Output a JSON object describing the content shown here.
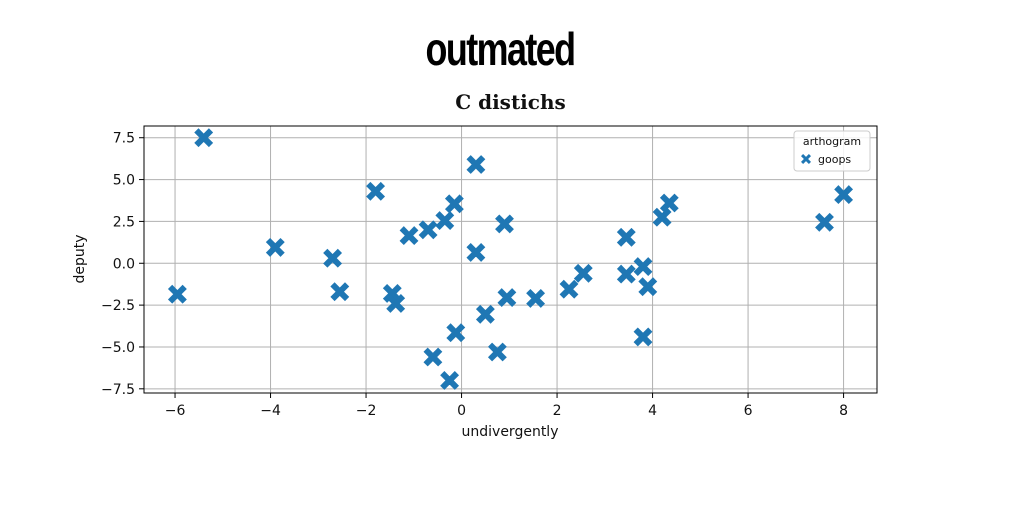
{
  "page": {
    "title": "outmated"
  },
  "chart_data": {
    "type": "scatter",
    "title": "C distichs",
    "xlabel": "undivergently",
    "ylabel": "deputy",
    "xlim": [
      -6.65,
      8.7
    ],
    "ylim": [
      -7.75,
      8.2
    ],
    "xticks": [
      -6,
      -4,
      -2,
      0,
      2,
      4,
      6,
      8
    ],
    "yticks": [
      -7.5,
      -5.0,
      -2.5,
      0.0,
      2.5,
      5.0,
      7.5
    ],
    "xtick_labels": [
      "−6",
      "−4",
      "−2",
      "0",
      "2",
      "4",
      "6",
      "8"
    ],
    "ytick_labels": [
      "−7.5",
      "−5.0",
      "−2.5",
      "0.0",
      "2.5",
      "5.0",
      "7.5"
    ],
    "grid": true,
    "legend": {
      "title": "arthogram",
      "placement": "top-right"
    },
    "series": [
      {
        "name": "goops",
        "color": "#1f77b4",
        "marker": "X",
        "points": [
          [
            -5.4,
            7.5
          ],
          [
            -5.95,
            -1.85
          ],
          [
            -3.9,
            0.95
          ],
          [
            -2.7,
            0.3
          ],
          [
            -2.55,
            -1.7
          ],
          [
            -1.8,
            4.3
          ],
          [
            -1.45,
            -1.8
          ],
          [
            -1.38,
            -2.4
          ],
          [
            -1.1,
            1.65
          ],
          [
            -0.7,
            2.0
          ],
          [
            -0.35,
            2.55
          ],
          [
            -0.15,
            3.55
          ],
          [
            -0.6,
            -5.6
          ],
          [
            -0.25,
            -7.0
          ],
          [
            -0.12,
            -4.15
          ],
          [
            0.3,
            5.9
          ],
          [
            0.3,
            0.65
          ],
          [
            0.5,
            -3.05
          ],
          [
            0.75,
            -5.3
          ],
          [
            0.9,
            2.35
          ],
          [
            0.95,
            -2.05
          ],
          [
            1.55,
            -2.1
          ],
          [
            2.25,
            -1.55
          ],
          [
            2.55,
            -0.6
          ],
          [
            3.45,
            -0.65
          ],
          [
            3.45,
            1.55
          ],
          [
            3.8,
            -0.2
          ],
          [
            3.9,
            -1.4
          ],
          [
            3.8,
            -4.4
          ],
          [
            4.2,
            2.75
          ],
          [
            4.35,
            3.6
          ],
          [
            7.6,
            2.45
          ],
          [
            8.0,
            4.1
          ]
        ]
      }
    ]
  }
}
